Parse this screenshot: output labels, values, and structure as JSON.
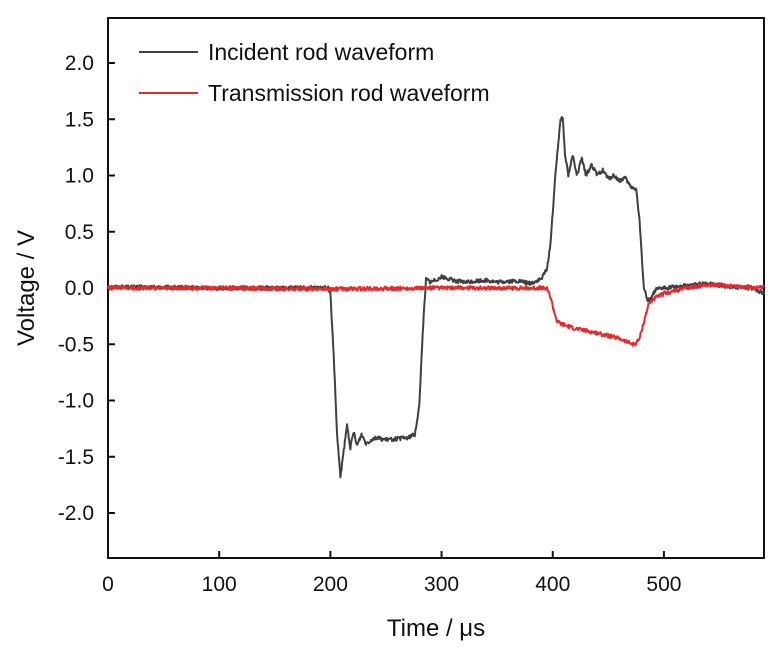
{
  "chart_data": {
    "type": "line",
    "title": "",
    "xlabel": "Time / μs",
    "ylabel": "Voltage / V",
    "xlim": [
      0,
      590
    ],
    "ylim": [
      -2.4,
      2.4
    ],
    "x_ticks": [
      0,
      100,
      200,
      300,
      400,
      500
    ],
    "x_tick_labels": [
      "0",
      "100",
      "200",
      "300",
      "400",
      "500"
    ],
    "y_ticks": [
      2.0,
      1.5,
      1.0,
      0.5,
      0.0,
      -0.5,
      -1.0,
      -1.5,
      -2.0
    ],
    "y_tick_labels": [
      "2.0",
      "1.5",
      "1.0",
      "0.5",
      "0.0",
      "-0.5",
      "-1.0",
      "-1.5",
      "-2.0"
    ],
    "grid": false,
    "legend_position": "top-left",
    "series": [
      {
        "name": "Incident rod waveform",
        "color": "#404040",
        "x": [
          0,
          100,
          198,
          200,
          203,
          206,
          209,
          212,
          215,
          218,
          221,
          224,
          228,
          232,
          240,
          250,
          260,
          270,
          276,
          280,
          283,
          286,
          290,
          300,
          310,
          320,
          330,
          340,
          350,
          360,
          370,
          380,
          390,
          395,
          398,
          402,
          405,
          407,
          409,
          411,
          414,
          418,
          422,
          426,
          430,
          435,
          440,
          445,
          450,
          455,
          460,
          465,
          470,
          475,
          478,
          482,
          485,
          488,
          492,
          500,
          520,
          540,
          560,
          580,
          590
        ],
        "y": [
          0.01,
          0.0,
          0.0,
          -0.05,
          -0.6,
          -1.3,
          -1.68,
          -1.45,
          -1.22,
          -1.42,
          -1.28,
          -1.4,
          -1.3,
          -1.38,
          -1.33,
          -1.35,
          -1.34,
          -1.33,
          -1.3,
          -1.05,
          -0.4,
          0.08,
          0.05,
          0.1,
          0.07,
          0.05,
          0.06,
          0.07,
          0.05,
          0.06,
          0.06,
          0.04,
          0.08,
          0.18,
          0.4,
          0.95,
          1.3,
          1.5,
          1.52,
          1.2,
          1.0,
          1.18,
          1.0,
          1.15,
          1.0,
          1.1,
          1.0,
          1.05,
          0.97,
          1.0,
          0.95,
          0.98,
          0.9,
          0.88,
          0.6,
          0.0,
          -0.1,
          -0.1,
          -0.02,
          0.0,
          0.02,
          0.04,
          0.01,
          0.0,
          -0.05
        ]
      },
      {
        "name": "Transmission rod waveform",
        "color": "#e8292b",
        "x": [
          0,
          100,
          200,
          300,
          390,
          395,
          398,
          401,
          404,
          408,
          420,
          440,
          460,
          472,
          475,
          478,
          482,
          486,
          490,
          500,
          520,
          540,
          560,
          590
        ],
        "y": [
          0.0,
          0.0,
          -0.01,
          0.0,
          0.0,
          -0.01,
          -0.08,
          -0.2,
          -0.3,
          -0.32,
          -0.36,
          -0.4,
          -0.45,
          -0.5,
          -0.49,
          -0.45,
          -0.3,
          -0.15,
          -0.1,
          -0.05,
          0.0,
          0.03,
          0.02,
          0.0
        ]
      }
    ]
  }
}
